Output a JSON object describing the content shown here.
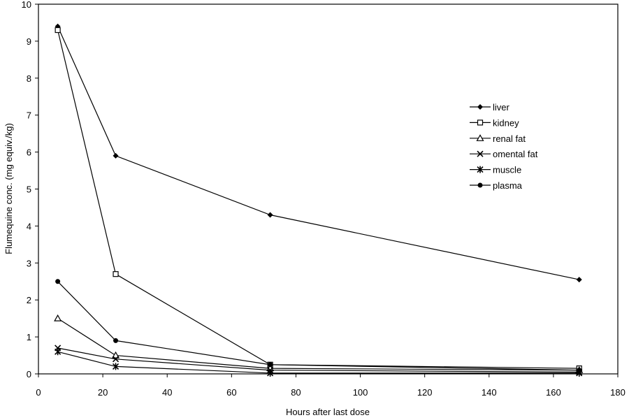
{
  "chart_data": {
    "type": "line",
    "xlabel": "Hours after last dose",
    "ylabel": "Flumequine conc. (mg equiv./kg)",
    "xlim": [
      0,
      180
    ],
    "ylim": [
      0,
      10
    ],
    "x_ticks": [
      0,
      20,
      40,
      60,
      80,
      100,
      120,
      140,
      160,
      180
    ],
    "y_ticks": [
      0,
      1,
      2,
      3,
      4,
      5,
      6,
      7,
      8,
      9,
      10
    ],
    "grid": false,
    "legend_position": "right",
    "x": [
      6,
      24,
      72,
      168
    ],
    "series": [
      {
        "name": "liver",
        "marker": "diamond",
        "values": [
          9.4,
          5.9,
          4.3,
          2.55
        ]
      },
      {
        "name": "kidney",
        "marker": "square",
        "values": [
          9.3,
          2.7,
          0.25,
          0.15
        ]
      },
      {
        "name": "renal fat",
        "marker": "triangle",
        "values": [
          1.5,
          0.5,
          0.15,
          0.1
        ]
      },
      {
        "name": "omental fat",
        "marker": "x",
        "values": [
          0.7,
          0.4,
          0.1,
          0.05
        ]
      },
      {
        "name": "muscle",
        "marker": "star",
        "values": [
          0.6,
          0.2,
          0.02,
          0.02
        ]
      },
      {
        "name": "plasma",
        "marker": "circle",
        "values": [
          2.5,
          0.9,
          0.25,
          0.1
        ]
      }
    ]
  }
}
